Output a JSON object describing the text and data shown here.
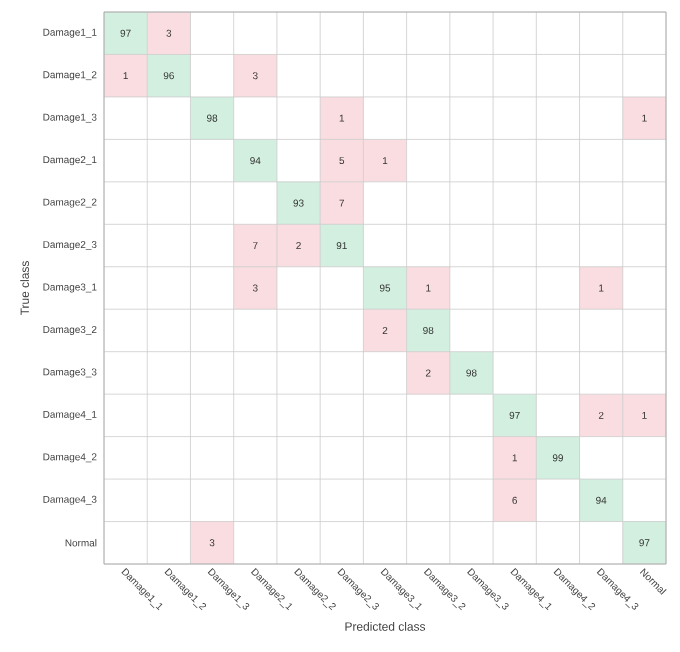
{
  "chart_data": {
    "type": "heatmap",
    "xlabel": "Predicted class",
    "ylabel": "True class",
    "categories": [
      "Damage1_1",
      "Damage1_2",
      "Damage1_3",
      "Damage2_1",
      "Damage2_2",
      "Damage2_3",
      "Damage3_1",
      "Damage3_2",
      "Damage3_3",
      "Damage4_1",
      "Damage4_2",
      "Damage4_3",
      "Normal"
    ],
    "y_categories": [
      "Damage1_1",
      "Damage1_2",
      "Damage1_3",
      "Damage2_1",
      "Damage2_2",
      "Damage2_3",
      "Damage3_1",
      "Damage3_2",
      "Damage3_3",
      "Damage4_1",
      "Damage4_2",
      "Damage4_3",
      "Normal"
    ],
    "cells": [
      [
        97,
        3,
        null,
        null,
        null,
        null,
        null,
        null,
        null,
        null,
        null,
        null,
        null
      ],
      [
        1,
        96,
        null,
        3,
        null,
        null,
        null,
        null,
        null,
        null,
        null,
        null,
        null
      ],
      [
        null,
        null,
        98,
        null,
        null,
        1,
        null,
        null,
        null,
        null,
        null,
        null,
        1
      ],
      [
        null,
        null,
        null,
        94,
        null,
        5,
        1,
        null,
        null,
        null,
        null,
        null,
        null
      ],
      [
        null,
        null,
        null,
        null,
        93,
        7,
        null,
        null,
        null,
        null,
        null,
        null,
        null
      ],
      [
        null,
        null,
        null,
        7,
        2,
        91,
        null,
        null,
        null,
        null,
        null,
        null,
        null
      ],
      [
        null,
        null,
        null,
        3,
        null,
        null,
        95,
        1,
        null,
        null,
        null,
        1,
        null
      ],
      [
        null,
        null,
        null,
        null,
        null,
        null,
        2,
        98,
        null,
        null,
        null,
        null,
        null
      ],
      [
        null,
        null,
        null,
        null,
        null,
        null,
        null,
        2,
        98,
        null,
        null,
        null,
        null
      ],
      [
        null,
        null,
        null,
        null,
        null,
        null,
        null,
        null,
        null,
        97,
        null,
        2,
        1
      ],
      [
        null,
        null,
        null,
        null,
        null,
        null,
        null,
        null,
        null,
        1,
        99,
        null,
        null
      ],
      [
        null,
        null,
        null,
        null,
        null,
        null,
        null,
        null,
        null,
        6,
        null,
        94,
        null
      ],
      [
        null,
        null,
        3,
        null,
        null,
        null,
        null,
        null,
        null,
        null,
        null,
        null,
        97
      ]
    ],
    "colors": [
      "#d2efdf",
      "#fadde0"
    ],
    "data_labels": true,
    "grid": true
  }
}
